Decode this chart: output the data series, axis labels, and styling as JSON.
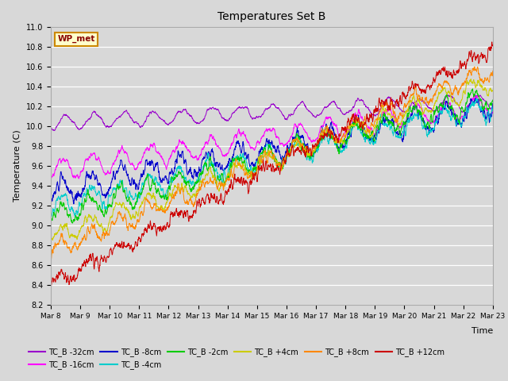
{
  "title": "Temperatures Set B",
  "xlabel": "Time",
  "ylabel": "Temperature (C)",
  "ylim": [
    8.2,
    11.0
  ],
  "background_color": "#d8d8d8",
  "plot_bg_color": "#d8d8d8",
  "series_colors": {
    "TC_B -32cm": "#9900cc",
    "TC_B -16cm": "#ff00ff",
    "TC_B -8cm": "#0000cc",
    "TC_B -4cm": "#00cccc",
    "TC_B -2cm": "#00cc00",
    "TC_B +4cm": "#cccc00",
    "TC_B +8cm": "#ff8800",
    "TC_B +12cm": "#cc0000"
  },
  "legend_box_color": "#ffffcc",
  "legend_box_edge": "#cc8800",
  "wp_met_label": "WP_met",
  "tick_labels": [
    "Mar 8",
    "Mar 9",
    "Mar 10",
    "Mar 11",
    "Mar 12",
    "Mar 13",
    "Mar 14",
    "Mar 15",
    "Mar 16",
    "Mar 17",
    "Mar 18",
    "Mar 19",
    "Mar 20",
    "Mar 21",
    "Mar 22",
    "Mar 23"
  ],
  "seed": 42
}
